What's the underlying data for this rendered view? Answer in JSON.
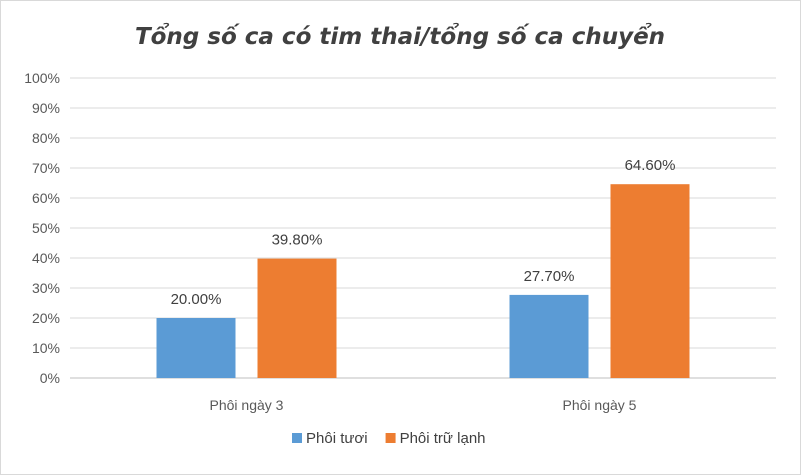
{
  "chart_data": {
    "type": "bar",
    "title": "Tổng số ca có tim thai/tổng số ca chuyển",
    "categories": [
      "Phôi ngày 3",
      "Phôi ngày 5"
    ],
    "series": [
      {
        "name": "Phôi tươi",
        "values": [
          20.0,
          27.7
        ],
        "labels": [
          "20.00%",
          "27.70%"
        ],
        "color": "#5b9bd5"
      },
      {
        "name": "Phôi trữ lạnh",
        "values": [
          39.8,
          64.6
        ],
        "labels": [
          "39.80%",
          "64.60%"
        ],
        "color": "#ed7d31"
      }
    ],
    "ylim": [
      0,
      100
    ],
    "yticks": [
      "0%",
      "10%",
      "20%",
      "30%",
      "40%",
      "50%",
      "60%",
      "70%",
      "80%",
      "90%",
      "100%"
    ],
    "grid": true,
    "legend_position": "bottom"
  }
}
